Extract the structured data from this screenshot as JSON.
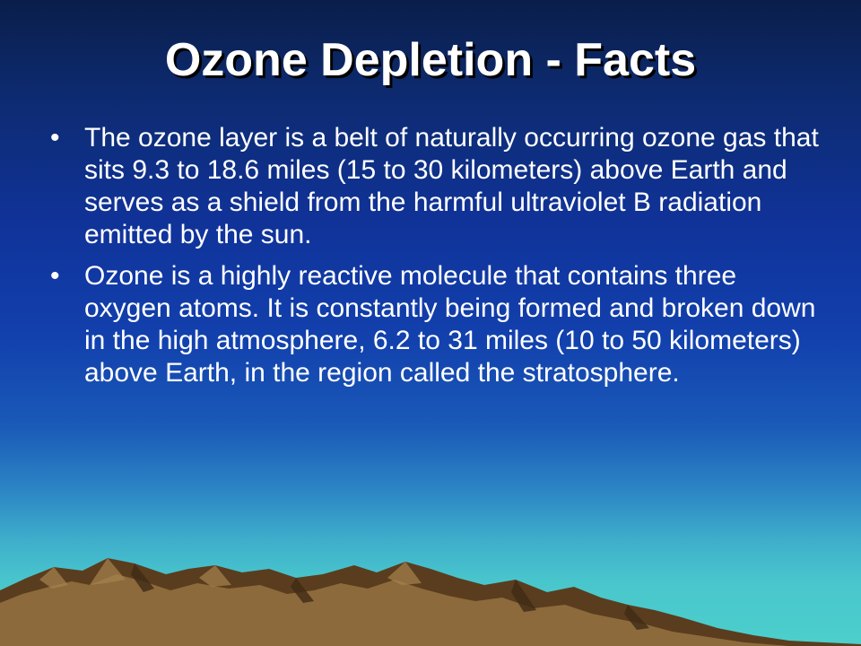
{
  "slide": {
    "title": "Ozone Depletion - Facts",
    "bullets": [
      "The ozone layer is a belt of naturally occurring ozone gas that sits 9.3 to 18.6 miles (15 to 30 kilometers) above Earth and serves as a shield from the harmful ultraviolet B radiation emitted by the sun.",
      "Ozone is a highly reactive molecule that contains three oxygen atoms. It is constantly being formed and broken down in the high atmosphere, 6.2 to 31 miles (10 to 50 kilometers) above Earth, in the region called the stratosphere."
    ],
    "bullet_symbol": "•"
  },
  "colors": {
    "sky_top": "#0a1e4a",
    "sky_mid": "#1240ad",
    "horizon": "#4ccfcc",
    "mountain_dark": "#5a3d1e",
    "mountain_light": "#8c6a3c",
    "text": "#ffffff"
  },
  "icons": {
    "background_illustration": "mountain-range-icon"
  }
}
